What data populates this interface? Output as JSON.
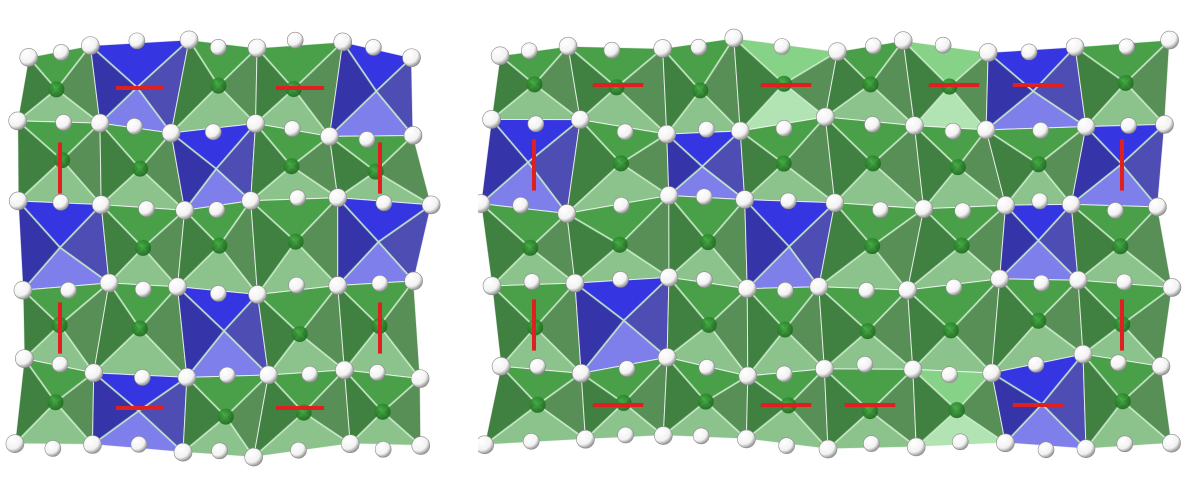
{
  "figure": {
    "panels": [
      {
        "name": "left-structure",
        "description_hidden": true
      },
      {
        "name": "right-structure",
        "description_hidden": true
      }
    ],
    "colors": {
      "polyhedron_green": "#3f9b3f",
      "polyhedron_green_dark": "#1f6a1f",
      "polyhedron_green_light": "#7fd07f",
      "polyhedron_blue": "#2a2ae0",
      "polyhedron_blue_dark": "#12129a",
      "atom_white": "#f2f2f2",
      "bond_red": "#e02020",
      "edge_white": "#ffffff",
      "center_atom": "#1d6b1d"
    }
  }
}
